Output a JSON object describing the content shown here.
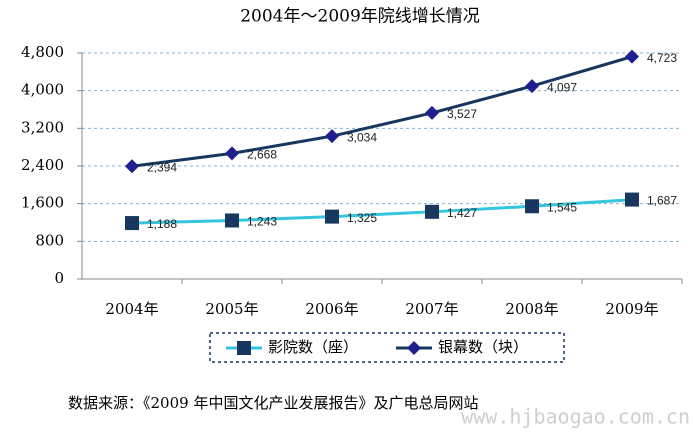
{
  "chart_data": {
    "type": "line",
    "title": "2004年～2009年院线增长情况",
    "categories": [
      "2004年",
      "2005年",
      "2006年",
      "2007年",
      "2008年",
      "2009年"
    ],
    "series": [
      {
        "name": "影院数（座）",
        "color": "#33c6dc",
        "marker": "square",
        "marker_color": "#17375e",
        "values": [
          1188,
          1243,
          1325,
          1427,
          1545,
          1687
        ],
        "value_labels": [
          "1,188",
          "1,243",
          "1,325",
          "1,427",
          "1,545",
          "1,687"
        ]
      },
      {
        "name": "银幕数（块）",
        "color": "#17375e",
        "marker": "diamond",
        "marker_color": "#1f1f8f",
        "values": [
          2394,
          2668,
          3034,
          3527,
          4097,
          4723
        ],
        "value_labels": [
          "2,394",
          "2,668",
          "3,034",
          "3,527",
          "4,097",
          "4,723"
        ]
      }
    ],
    "ylim": [
      0,
      4800
    ],
    "yticks": [
      0,
      800,
      {
        "value": 1600,
        "label": "1,600"
      },
      {
        "value": 2400,
        "label": "2,400"
      },
      {
        "value": 3200,
        "label": "3,200"
      },
      {
        "value": 4000,
        "label": "4,000"
      },
      {
        "value": 4800,
        "label": "4,800"
      }
    ],
    "grid": true,
    "legend": "bottom",
    "source": "数据来源：《2009 年中国文化产业发展报告》及广电总局网站",
    "watermark": "www.hjbaogao.com.cn"
  }
}
